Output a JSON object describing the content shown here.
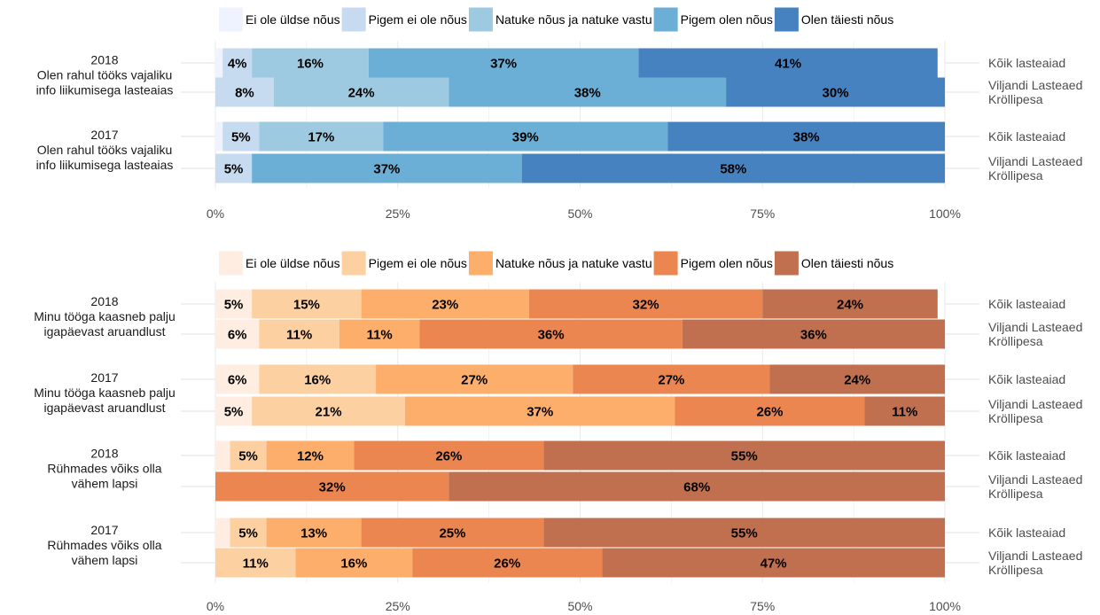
{
  "chart_data": [
    {
      "type": "bar",
      "orientation": "horizontal",
      "stacked": true,
      "legend_position": "top",
      "xlim": [
        0,
        100
      ],
      "x_ticks": [
        "0%",
        "25%",
        "50%",
        "75%",
        "100%"
      ],
      "legend": [
        "Ei ole üldse nõus",
        "Pigem ei ole nõus",
        "Natuke nõus ja natuke vastu",
        "Pigem olen nõus",
        "Olen täiesti nõus"
      ],
      "colors": [
        "#eff3ff",
        "#c6dbef",
        "#9ecae1",
        "#6baed6",
        "#4682bf"
      ],
      "groups": [
        {
          "label": [
            "2018",
            "Olen rahul tööks vajaliku",
            "info liikumisega lasteaias"
          ],
          "rows": [
            {
              "label": [
                "Kõik lasteaiad"
              ],
              "values": [
                1,
                4,
                16,
                37,
                41
              ],
              "labels": [
                "",
                "4%",
                "16%",
                "37%",
                "41%"
              ]
            },
            {
              "label": [
                "Viljandi Lasteaed",
                "Kröllipesa"
              ],
              "values": [
                0,
                8,
                24,
                38,
                30
              ],
              "labels": [
                "",
                "8%",
                "24%",
                "38%",
                "30%"
              ]
            }
          ]
        },
        {
          "label": [
            "2017",
            "Olen rahul tööks vajaliku",
            "info liikumisega lasteaias"
          ],
          "rows": [
            {
              "label": [
                "Kõik lasteaiad"
              ],
              "values": [
                1,
                5,
                17,
                39,
                38
              ],
              "labels": [
                "",
                "5%",
                "17%",
                "39%",
                "38%"
              ]
            },
            {
              "label": [
                "Viljandi Lasteaed",
                "Kröllipesa"
              ],
              "values": [
                0,
                5,
                0,
                37,
                58
              ],
              "labels": [
                "",
                "5%",
                "",
                "37%",
                "58%"
              ]
            }
          ]
        }
      ]
    },
    {
      "type": "bar",
      "orientation": "horizontal",
      "stacked": true,
      "legend_position": "top",
      "xlim": [
        0,
        100
      ],
      "x_ticks": [
        "0%",
        "25%",
        "50%",
        "75%",
        "100%"
      ],
      "legend": [
        "Ei ole üldse nõus",
        "Pigem ei ole nõus",
        "Natuke nõus ja natuke vastu",
        "Pigem olen nõus",
        "Olen täiesti nõus"
      ],
      "colors": [
        "#feede0",
        "#fdd0a2",
        "#fdae6b",
        "#ec8651",
        "#c0704f"
      ],
      "groups": [
        {
          "label": [
            "2018",
            "Minu tööga kaasneb palju",
            "igapäevast aruandlust"
          ],
          "rows": [
            {
              "label": [
                "Kõik lasteaiad"
              ],
              "values": [
                5,
                15,
                23,
                32,
                24
              ],
              "labels": [
                "5%",
                "15%",
                "23%",
                "32%",
                "24%"
              ]
            },
            {
              "label": [
                "Viljandi Lasteaed",
                "Kröllipesa"
              ],
              "values": [
                6,
                11,
                11,
                36,
                36
              ],
              "labels": [
                "6%",
                "11%",
                "11%",
                "36%",
                "36%"
              ]
            }
          ]
        },
        {
          "label": [
            "2017",
            "Minu tööga kaasneb palju",
            "igapäevast aruandlust"
          ],
          "rows": [
            {
              "label": [
                "Kõik lasteaiad"
              ],
              "values": [
                6,
                16,
                27,
                27,
                24
              ],
              "labels": [
                "6%",
                "16%",
                "27%",
                "27%",
                "24%"
              ]
            },
            {
              "label": [
                "Viljandi Lasteaed",
                "Kröllipesa"
              ],
              "values": [
                5,
                21,
                37,
                26,
                11
              ],
              "labels": [
                "5%",
                "21%",
                "37%",
                "26%",
                "11%"
              ]
            }
          ]
        },
        {
          "label": [
            "2018",
            "Rühmades võiks olla",
            "vähem lapsi"
          ],
          "rows": [
            {
              "label": [
                "Kõik lasteaiad"
              ],
              "values": [
                2,
                5,
                12,
                26,
                55
              ],
              "labels": [
                "",
                "5%",
                "12%",
                "26%",
                "55%"
              ]
            },
            {
              "label": [
                "Viljandi Lasteaed",
                "Kröllipesa"
              ],
              "values": [
                0,
                0,
                0,
                32,
                68
              ],
              "labels": [
                "",
                "",
                "",
                "32%",
                "68%"
              ]
            }
          ]
        },
        {
          "label": [
            "2017",
            "Rühmades võiks olla",
            "vähem lapsi"
          ],
          "rows": [
            {
              "label": [
                "Kõik lasteaiad"
              ],
              "values": [
                2,
                5,
                13,
                25,
                55
              ],
              "labels": [
                "",
                "5%",
                "13%",
                "25%",
                "55%"
              ]
            },
            {
              "label": [
                "Viljandi Lasteaed",
                "Kröllipesa"
              ],
              "values": [
                0,
                11,
                16,
                26,
                47
              ],
              "labels": [
                "",
                "11%",
                "16%",
                "26%",
                "47%"
              ]
            }
          ]
        }
      ]
    }
  ]
}
